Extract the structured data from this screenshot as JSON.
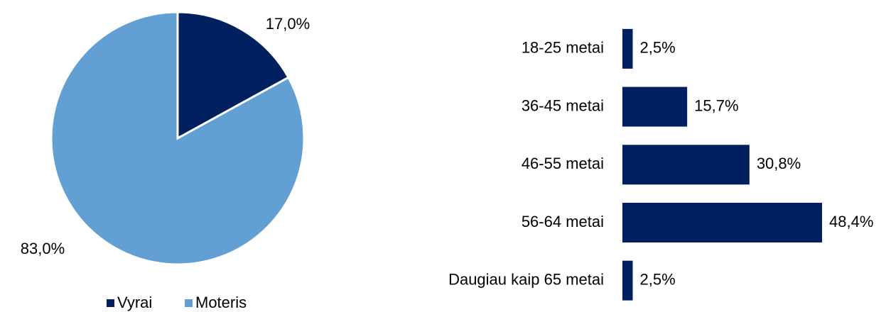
{
  "chart_data": [
    {
      "type": "pie",
      "categories": [
        "Vyrai",
        "Moteris"
      ],
      "values": [
        17,
        83
      ],
      "value_labels": [
        "17,0%",
        "83,0%"
      ],
      "colors": [
        "#002060",
        "#629fd2"
      ],
      "legend": "bottom"
    },
    {
      "type": "bar",
      "orientation": "horizontal",
      "categories": [
        "18-25 metai",
        "36-45 metai",
        "46-55 metai",
        "56-64 metai",
        "Daugiau kaip 65 metai"
      ],
      "values": [
        2.5,
        15.7,
        30.8,
        48.4,
        2.5
      ],
      "value_labels": [
        "2,5%",
        "15,7%",
        "30,8%",
        "48,4%",
        "2,5%"
      ],
      "color": "#002060"
    }
  ]
}
